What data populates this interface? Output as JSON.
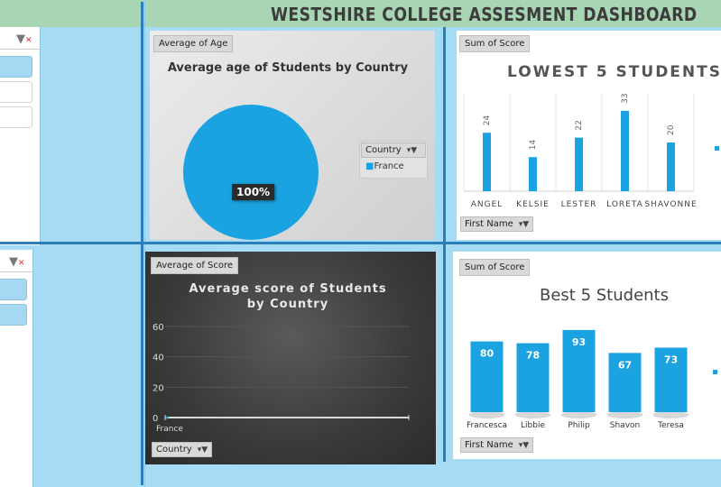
{
  "dashboard": {
    "title": "WESTSHIRE COLLEGE ASSESMENT DASHBOARD"
  },
  "colors": {
    "accent": "#1aa3e0",
    "divider": "#2b7fb8",
    "title_bar": "#a8d5b4",
    "background": "#a6dcf3"
  },
  "icons": {
    "filter": "funnel-icon",
    "clear_filter": "clear-filter-icon",
    "dropdown": "chevron-down-icon"
  },
  "charts": {
    "age": {
      "field_label": "Average of Age",
      "legend_header": "Country",
      "slice_label": "100%",
      "filter_button": "Country"
    },
    "lowest": {
      "field_label": "Sum of Score",
      "filter_button": "First Name"
    },
    "score": {
      "field_label": "Average of Score",
      "filter_button": "Country"
    },
    "best": {
      "field_label": "Sum of Score",
      "filter_button": "First Name"
    }
  },
  "chart_data": [
    {
      "type": "pie",
      "title": "Average age of Students by Country",
      "categories": [
        "France"
      ],
      "values": [
        100
      ],
      "legend": "right"
    },
    {
      "type": "bar",
      "title": "LOWEST 5 STUDENTS",
      "categories": [
        "ANGEL",
        "KELSIE",
        "LESTER",
        "LORETA",
        "SHAVONNE"
      ],
      "values": [
        24,
        14,
        22,
        33,
        20
      ],
      "ylim": [
        0,
        40
      ],
      "grid": false
    },
    {
      "type": "line",
      "title": "Average score of Students by Country",
      "categories": [
        "France"
      ],
      "values": [
        0
      ],
      "yticks": [
        0,
        20,
        40,
        60
      ],
      "ylim": [
        0,
        60
      ],
      "grid": true
    },
    {
      "type": "bar",
      "title": "Best 5 Students",
      "categories": [
        "Francesca",
        "Libbie",
        "Philip",
        "Shavon",
        "Teresa"
      ],
      "values": [
        80,
        78,
        93,
        67,
        73
      ],
      "ylim": [
        0,
        100
      ],
      "grid": false
    }
  ]
}
